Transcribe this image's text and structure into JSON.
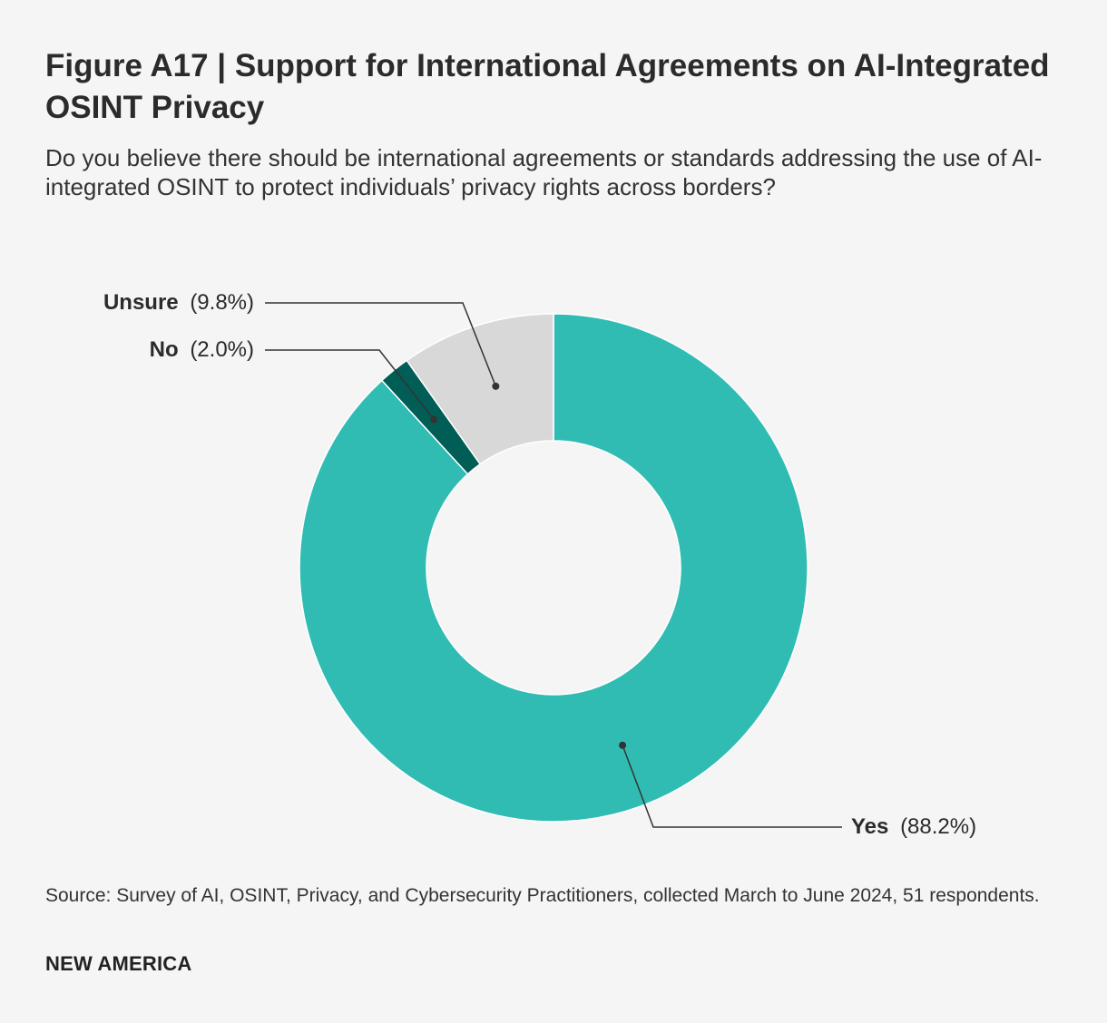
{
  "header": {
    "title": "Figure A17 | Support for International Agreements on AI-Integrated OSINT Privacy",
    "subtitle": "Do you believe there should be international agreements or standards addressing the use of AI-integrated OSINT to protect individuals’ privacy rights across borders?"
  },
  "chart_data": {
    "type": "pie",
    "donut": true,
    "categories": [
      "Yes",
      "No",
      "Unsure"
    ],
    "values": [
      88.2,
      2.0,
      9.8
    ],
    "value_labels": [
      "(88.2%)",
      "(2.0%)",
      "(9.8%)"
    ],
    "colors": [
      "#31bcb3",
      "#005e57",
      "#d8d8d8"
    ],
    "legend": "none"
  },
  "footer": {
    "source": "Source: Survey of AI, OSINT, Privacy, and Cybersecurity Practitioners, collected March to June 2024, 51 respondents.",
    "brand": "NEW AMERICA"
  }
}
